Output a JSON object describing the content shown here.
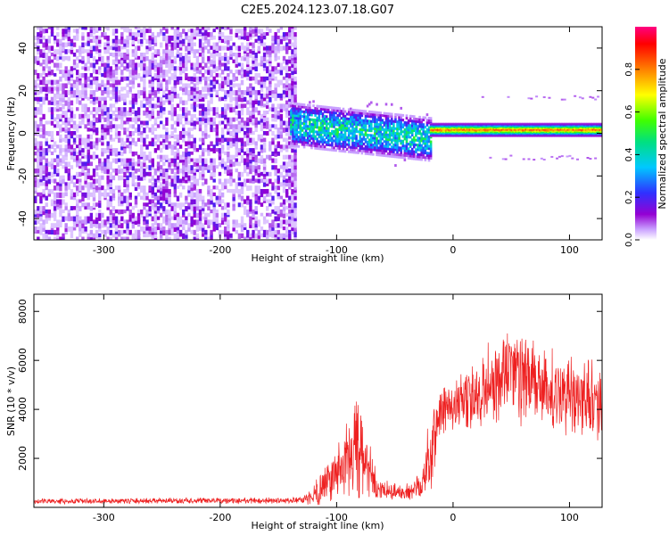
{
  "title": "C2E5.2024.123.07.18.G07",
  "chart_data": [
    {
      "type": "heatmap",
      "xlabel": "Height of straight line (km)",
      "ylabel": "Frequency (Hz)",
      "xlim": [
        -360,
        128
      ],
      "ylim": [
        -50,
        50
      ],
      "xticks": [
        -300,
        -200,
        -100,
        0,
        100
      ],
      "yticks": [
        -40,
        -20,
        0,
        20,
        40
      ],
      "xtick_labels": [
        "-300",
        "-200",
        "-100",
        "0",
        "100"
      ],
      "ytick_labels": [
        "-40",
        "-20",
        "0",
        "20",
        "40"
      ],
      "colorbar": {
        "label": "Normalized spectral amplitude",
        "range": [
          0,
          1
        ],
        "ticks": [
          0.0,
          0.2,
          0.4,
          0.6,
          0.8
        ],
        "tick_labels": [
          "0.0",
          "0.2",
          "0.4",
          "0.6",
          "0.8"
        ],
        "colormap": [
          "#ffffff",
          "#9400d3",
          "#3030ff",
          "#00c8ff",
          "#00e080",
          "#40ff00",
          "#ffff00",
          "#ff8000",
          "#ff0000",
          "#ff0080"
        ]
      },
      "regions": [
        {
          "x_range": [
            -360,
            -140
          ],
          "freq_range": [
            -50,
            50
          ],
          "pattern": "noise",
          "amplitude": 0.1
        },
        {
          "x_range": [
            -140,
            -20
          ],
          "freq_center_start": 4,
          "freq_center_end": -3,
          "width": 10,
          "amplitude": 0.45
        },
        {
          "x_range": [
            -20,
            128
          ],
          "freq_center": 1.5,
          "width": 3,
          "amplitude": 0.85
        }
      ],
      "grid": false
    },
    {
      "type": "line",
      "xlabel": "Height of straight line (km)",
      "ylabel": "SNR (10 * v/v)",
      "xlim": [
        -360,
        128
      ],
      "ylim": [
        0,
        8700
      ],
      "xticks": [
        -300,
        -200,
        -100,
        0,
        100
      ],
      "yticks": [
        2000,
        4000,
        6000,
        8000
      ],
      "xtick_labels": [
        "-300",
        "-200",
        "-100",
        "0",
        "100"
      ],
      "ytick_labels": [
        "2000",
        "4000",
        "6000",
        "8000"
      ],
      "color": "#ee2020",
      "envelope": [
        {
          "x": -360,
          "base": 250,
          "amp": 120
        },
        {
          "x": -130,
          "base": 280,
          "amp": 150
        },
        {
          "x": -120,
          "base": 500,
          "amp": 500
        },
        {
          "x": -105,
          "base": 1200,
          "amp": 1200
        },
        {
          "x": -90,
          "base": 2000,
          "amp": 1800
        },
        {
          "x": -82,
          "base": 2400,
          "amp": 2800
        },
        {
          "x": -72,
          "base": 1400,
          "amp": 1500
        },
        {
          "x": -65,
          "base": 700,
          "amp": 500
        },
        {
          "x": -40,
          "base": 600,
          "amp": 400
        },
        {
          "x": -28,
          "base": 900,
          "amp": 800
        },
        {
          "x": -18,
          "base": 2500,
          "amp": 2200
        },
        {
          "x": -8,
          "base": 4200,
          "amp": 1400
        },
        {
          "x": 10,
          "base": 4200,
          "amp": 1400
        },
        {
          "x": 30,
          "base": 5000,
          "amp": 2000
        },
        {
          "x": 50,
          "base": 5600,
          "amp": 2600
        },
        {
          "x": 75,
          "base": 4800,
          "amp": 2000
        },
        {
          "x": 100,
          "base": 4600,
          "amp": 1800
        },
        {
          "x": 128,
          "base": 4300,
          "amp": 1800
        }
      ],
      "grid": false
    }
  ]
}
